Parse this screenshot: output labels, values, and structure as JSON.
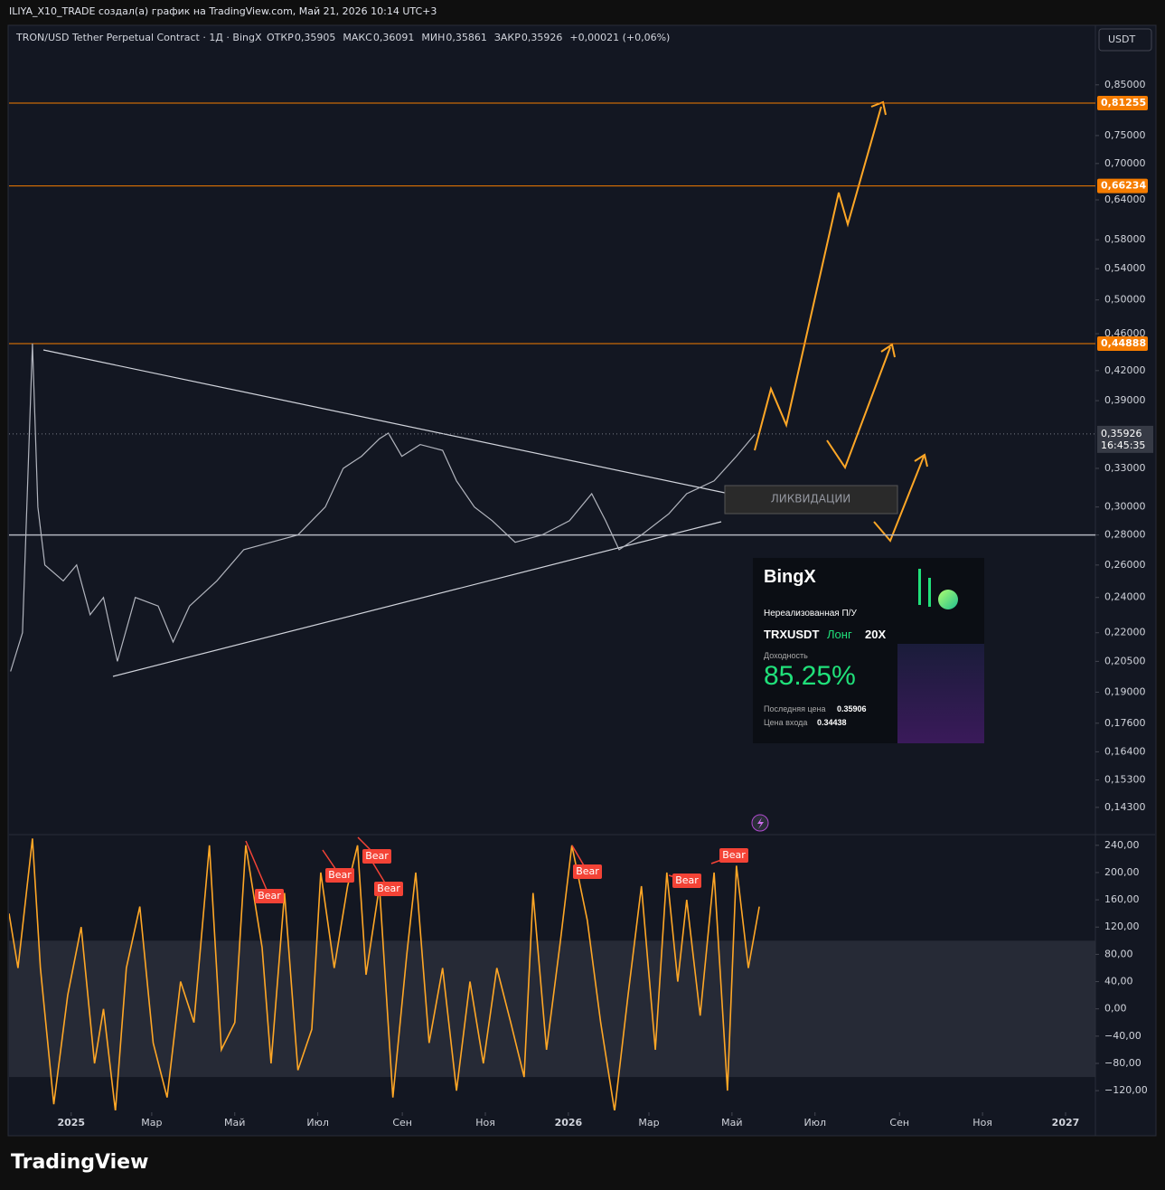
{
  "header": {
    "credit": "ILIYA_X10_TRADE создал(а) график на TradingView.com, Май 21, 2026 10:14 UTC+3",
    "symbol": "TRON/USD Tether Perpetual Contract · 1Д · BingX",
    "ohlc": [
      {
        "name": "ОТКР",
        "value": "0,35905"
      },
      {
        "name": "МАКС",
        "value": "0,36091"
      },
      {
        "name": "МИН",
        "value": "0,35861"
      },
      {
        "name": "ЗАКР",
        "value": "0,35926"
      }
    ],
    "change": "+0,00021 (+0,06%)",
    "currency": "USDT"
  },
  "chart_data": [
    {
      "type": "line",
      "log_scale": true,
      "color": "#b2b5be",
      "x": [
        2024.878,
        2024.902,
        2024.922,
        2024.933,
        2024.947,
        2024.984,
        2025.011,
        2025.038,
        2025.065,
        2025.093,
        2025.129,
        2025.175,
        2025.205,
        2025.238,
        2025.293,
        2025.347,
        2025.402,
        2025.456,
        2025.511,
        2025.547,
        2025.584,
        2025.62,
        2025.638,
        2025.665,
        2025.702,
        2025.747,
        2025.775,
        2025.811,
        2025.847,
        2025.893,
        2025.947,
        2026.002,
        2026.047,
        2026.075,
        2026.102,
        2026.147,
        2026.202,
        2026.238,
        2026.293,
        2026.338,
        2026.375
      ],
      "series": [
        {
          "name": "TRXUSDT",
          "color": "#b2b5be",
          "values": [
            0.2,
            0.22,
            0.449,
            0.3,
            0.26,
            0.25,
            0.26,
            0.23,
            0.24,
            0.205,
            0.24,
            0.235,
            0.215,
            0.235,
            0.25,
            0.27,
            0.275,
            0.28,
            0.3,
            0.33,
            0.34,
            0.355,
            0.36,
            0.34,
            0.35,
            0.345,
            0.32,
            0.3,
            0.29,
            0.275,
            0.28,
            0.29,
            0.31,
            0.29,
            0.27,
            0.28,
            0.295,
            0.31,
            0.32,
            0.34,
            0.359
          ]
        }
      ],
      "xlim": [
        2024.875,
        2027.06
      ],
      "xticks": [
        2025,
        {
          "value": 2025.162,
          "label": "Мар"
        },
        {
          "value": 2025.329,
          "label": "Май"
        },
        {
          "value": 2025.496,
          "label": "Июл"
        },
        {
          "value": 2025.666,
          "label": "Сен"
        },
        {
          "value": 2025.833,
          "label": "Ноя"
        },
        2026,
        {
          "value": 2026.162,
          "label": "Мар"
        },
        {
          "value": 2026.329,
          "label": "Май"
        },
        {
          "value": 2026.496,
          "label": "Июл"
        },
        {
          "value": 2026.666,
          "label": "Сен"
        },
        {
          "value": 2026.833,
          "label": "Ноя"
        },
        2027
      ],
      "ylim": [
        0.134,
        0.98
      ],
      "yticks": [
        {
          "value": 0.85,
          "label": "0,85000"
        },
        {
          "value": 0.75,
          "label": "0,75000"
        },
        {
          "value": 0.7,
          "label": "0,70000"
        },
        {
          "value": 0.64,
          "label": "0,64000"
        },
        {
          "value": 0.58,
          "label": "0,58000"
        },
        {
          "value": 0.54,
          "label": "0,54000"
        },
        {
          "value": 0.5,
          "label": "0,50000"
        },
        {
          "value": 0.46,
          "label": "0,46000"
        },
        {
          "value": 0.42,
          "label": "0,42000"
        },
        {
          "value": 0.39,
          "label": "0,39000"
        },
        {
          "value": 0.33,
          "label": "0,33000"
        },
        {
          "value": 0.3,
          "label": "0,30000"
        },
        {
          "value": 0.28,
          "label": "0,28000"
        },
        {
          "value": 0.26,
          "label": "0,26000"
        },
        {
          "value": 0.24,
          "label": "0,24000"
        },
        {
          "value": 0.22,
          "label": "0,22000"
        },
        {
          "value": 0.205,
          "label": "0,20500"
        },
        {
          "value": 0.19,
          "label": "0,19000"
        },
        {
          "value": 0.176,
          "label": "0,17600"
        },
        {
          "value": 0.164,
          "label": "0,16400"
        },
        {
          "value": 0.153,
          "label": "0,15300"
        },
        {
          "value": 0.143,
          "label": "0,14300"
        }
      ],
      "levels": [
        {
          "value": 0.81255,
          "label": "0,81255",
          "color": "#f57c00"
        },
        {
          "value": 0.66234,
          "label": "0,66234",
          "color": "#f57c00"
        },
        {
          "value": 0.44888,
          "label": "0,44888",
          "color": "#f57c00"
        },
        {
          "value": 0.28,
          "color": "#b2b5be"
        }
      ],
      "last": {
        "value": 0.35926,
        "label": "0,35926",
        "countdown": "16:45:35"
      },
      "annotation": "ЛИКВИДАЦИИ"
    },
    {
      "type": "line",
      "color": "#ffa726",
      "x": [
        2024.875,
        2024.893,
        2024.922,
        2024.938,
        2024.965,
        2024.993,
        2025.02,
        2025.047,
        2025.065,
        2025.089,
        2025.111,
        2025.138,
        2025.165,
        2025.193,
        2025.22,
        2025.247,
        2025.278,
        2025.302,
        2025.329,
        2025.351,
        2025.384,
        2025.402,
        2025.429,
        2025.456,
        2025.484,
        2025.502,
        2025.529,
        2025.556,
        2025.576,
        2025.593,
        2025.62,
        2025.647,
        2025.675,
        2025.693,
        2025.72,
        2025.747,
        2025.775,
        2025.802,
        2025.829,
        2025.856,
        2025.884,
        2025.911,
        2025.929,
        2025.956,
        2025.984,
        2026.007,
        2026.038,
        2026.065,
        2026.093,
        2026.12,
        2026.147,
        2026.175,
        2026.198,
        2026.22,
        2026.238,
        2026.265,
        2026.293,
        2026.32,
        2026.338,
        2026.362,
        2026.384
      ],
      "series": [
        {
          "name": "CCI",
          "color": "#ffa726",
          "values": [
            140,
            60,
            250,
            60,
            -140,
            20,
            120,
            -80,
            0,
            -150,
            60,
            150,
            -50,
            -130,
            40,
            -20,
            240,
            -60,
            -20,
            240,
            90,
            -80,
            170,
            -90,
            -30,
            200,
            60,
            180,
            240,
            50,
            180,
            -130,
            80,
            200,
            -50,
            60,
            -120,
            40,
            -80,
            60,
            -20,
            -100,
            170,
            -60,
            100,
            240,
            130,
            -20,
            -150,
            20,
            180,
            -60,
            200,
            40,
            160,
            -10,
            200,
            -120,
            210,
            60,
            150
          ]
        }
      ],
      "band": [
        100,
        -100
      ],
      "ylim": [
        -149,
        253
      ],
      "yticks": [
        {
          "value": 240,
          "label": "240,00"
        },
        {
          "value": 200,
          "label": "200,00"
        },
        {
          "value": 160,
          "label": "160,00"
        },
        {
          "value": 120,
          "label": "120,00"
        },
        {
          "value": 80,
          "label": "80,00"
        },
        {
          "value": 40,
          "label": "40,00"
        },
        {
          "value": 0,
          "label": "0,00"
        },
        {
          "value": -40,
          "label": "−40,00"
        },
        {
          "value": -80,
          "label": "−80,00"
        },
        {
          "value": -120,
          "label": "−120,00"
        }
      ],
      "annotations": [
        "Bear",
        "Bear",
        "Bear",
        "Bear",
        "Bear",
        "Bear",
        "Bear"
      ]
    }
  ],
  "card": {
    "brand": "BingX",
    "title": "Нереализованная П/У",
    "pair": "TRXUSDT",
    "side": "Лонг",
    "leverage": "20X",
    "roi_label": "Доходность",
    "roi": "85.25%",
    "last_label": "Последняя цена",
    "last": "0.35906",
    "entry_label": "Цена входа",
    "entry": "0.34438"
  },
  "footer": {
    "logo": "TradingView"
  }
}
